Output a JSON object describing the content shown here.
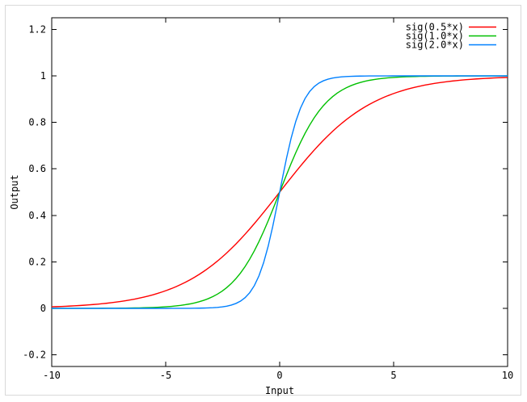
{
  "colors": {
    "background": "#ffffff",
    "frame_border": "#d9d9d9",
    "axis": "#000000",
    "text": "#000000"
  },
  "chart_data": {
    "type": "line",
    "title": "",
    "xlabel": "Input",
    "ylabel": "Output",
    "x_range": [
      -10,
      10
    ],
    "y_range": [
      -0.25,
      1.25
    ],
    "grid": false,
    "legend_position": "top-right",
    "function": "sig(k*x) = 1/(1+exp(-k*x))",
    "samples": 100,
    "x_ticks": [
      {
        "v": -10,
        "label": "-10"
      },
      {
        "v": -5,
        "label": "-5"
      },
      {
        "v": 0,
        "label": "0"
      },
      {
        "v": 5,
        "label": "5"
      },
      {
        "v": 10,
        "label": "10"
      }
    ],
    "y_ticks": [
      {
        "v": -0.2,
        "label": "-0.2"
      },
      {
        "v": 0,
        "label": "0"
      },
      {
        "v": 0.2,
        "label": "0.2"
      },
      {
        "v": 0.4,
        "label": "0.4"
      },
      {
        "v": 0.6,
        "label": "0.6"
      },
      {
        "v": 0.8,
        "label": "0.8"
      },
      {
        "v": 1,
        "label": "1"
      },
      {
        "v": 1.2,
        "label": "1.2"
      }
    ],
    "series": [
      {
        "name": "sig(0.5*x)",
        "k": 0.5,
        "color": "#ff0000",
        "sample_x": [
          -10,
          -7.5,
          -5,
          -2.5,
          0,
          2.5,
          5,
          7.5,
          10
        ],
        "sample_y": [
          0.0067,
          0.0229,
          0.0759,
          0.2227,
          0.5,
          0.7773,
          0.9241,
          0.9771,
          0.9933
        ]
      },
      {
        "name": "sig(1.0*x)",
        "k": 1.0,
        "color": "#00c000",
        "sample_x": [
          -10,
          -7.5,
          -5,
          -2.5,
          0,
          2.5,
          5,
          7.5,
          10
        ],
        "sample_y": [
          0.0,
          0.0006,
          0.0067,
          0.0759,
          0.5,
          0.9241,
          0.9933,
          0.9994,
          1.0
        ]
      },
      {
        "name": "sig(2.0*x)",
        "k": 2.0,
        "color": "#0080ff",
        "sample_x": [
          -10,
          -7.5,
          -5,
          -2.5,
          0,
          2.5,
          5,
          7.5,
          10
        ],
        "sample_y": [
          0.0,
          0.0,
          0.0,
          0.0067,
          0.5,
          0.9933,
          1.0,
          1.0,
          1.0
        ]
      }
    ]
  }
}
